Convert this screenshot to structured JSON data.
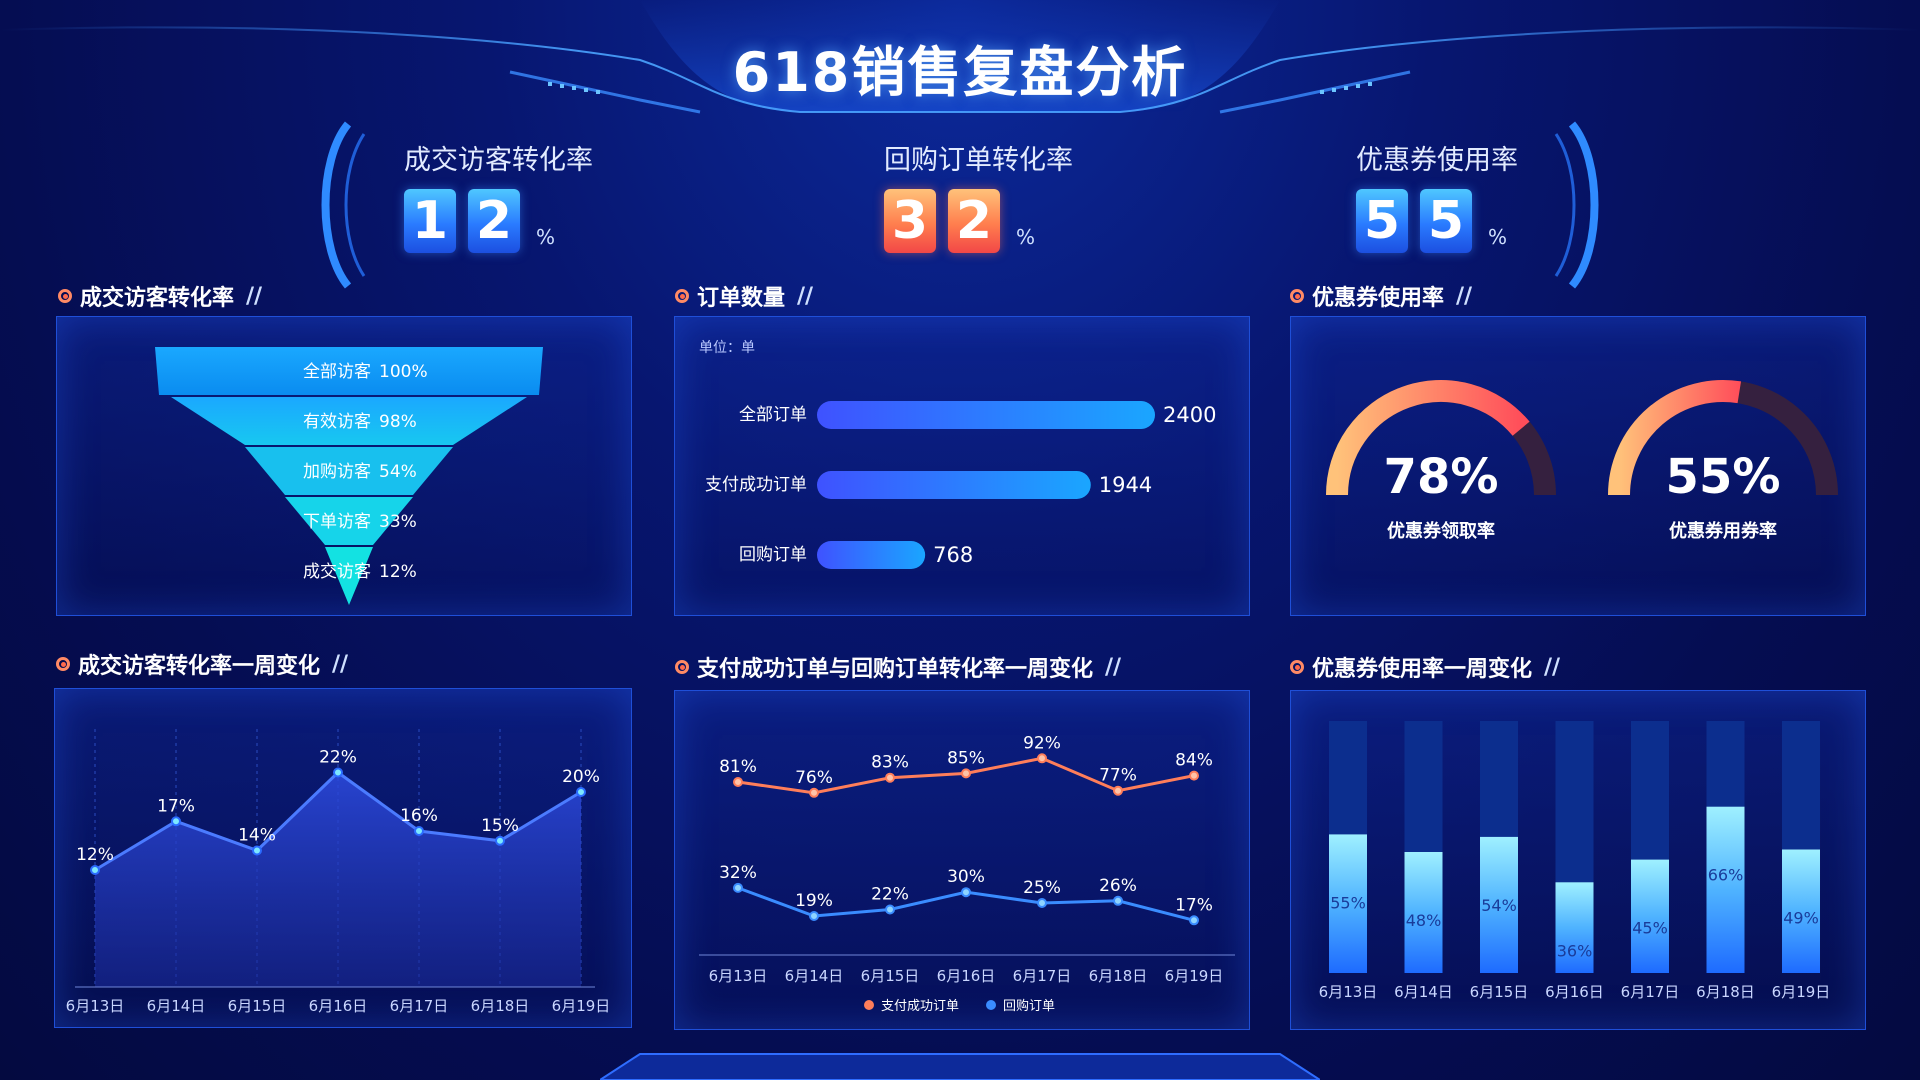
{
  "title": "618销售复盘分析",
  "kpis": [
    {
      "label": "成交访客转化率",
      "digits": [
        "1",
        "2"
      ],
      "unit": "%",
      "color": "blue"
    },
    {
      "label": "回购订单转化率",
      "digits": [
        "3",
        "2"
      ],
      "unit": "%",
      "color": "orange"
    },
    {
      "label": "优惠券使用率",
      "digits": [
        "5",
        "5"
      ],
      "unit": "%",
      "color": "blue"
    }
  ],
  "sections": {
    "funnel_title": "成交访客转化率",
    "orders_title": "订单数量",
    "coupon_title": "优惠券使用率",
    "area_title": "成交访客转化率一周变化",
    "lines_title": "支付成功订单与回购订单转化率一周变化",
    "coupon_week_title": "优惠券使用率一周变化",
    "slash": "//"
  },
  "chart_data": [
    {
      "type": "funnel",
      "categories": [
        "全部访客",
        "有效访客",
        "加购访客",
        "下单访客",
        "成交访客"
      ],
      "values": [
        100,
        98,
        54,
        33,
        12
      ],
      "value_labels": [
        "100%",
        "98%",
        "54%",
        "33%",
        "12%"
      ]
    },
    {
      "type": "bar",
      "unit_label": "单位：单",
      "categories": [
        "全部订单",
        "支付成功订单",
        "回购订单"
      ],
      "values": [
        2400,
        1944,
        768
      ]
    },
    {
      "type": "gauge",
      "items": [
        {
          "label": "优惠券领取率",
          "value": 78,
          "value_label": "78%"
        },
        {
          "label": "优惠券用券率",
          "value": 55,
          "value_label": "55%"
        }
      ]
    },
    {
      "type": "area",
      "x": [
        "6月13日",
        "6月14日",
        "6月15日",
        "6月16日",
        "6月17日",
        "6月18日",
        "6月19日"
      ],
      "values": [
        12,
        17,
        14,
        22,
        16,
        15,
        20
      ],
      "value_labels": [
        "12%",
        "17%",
        "14%",
        "22%",
        "16%",
        "15%",
        "20%"
      ]
    },
    {
      "type": "line",
      "x": [
        "6月13日",
        "6月14日",
        "6月15日",
        "6月16日",
        "6月17日",
        "6月18日",
        "6月19日"
      ],
      "series": [
        {
          "name": "支付成功订单",
          "values": [
            81,
            76,
            83,
            85,
            92,
            77,
            84
          ],
          "value_labels": [
            "81%",
            "76%",
            "83%",
            "85%",
            "92%",
            "77%",
            "84%"
          ],
          "color": "#ff7e5a"
        },
        {
          "name": "回购订单",
          "values": [
            32,
            19,
            22,
            30,
            25,
            26,
            17
          ],
          "value_labels": [
            "32%",
            "19%",
            "22%",
            "30%",
            "25%",
            "26%",
            "17%"
          ],
          "color": "#3a8cff"
        }
      ],
      "legend": "bottom-center"
    },
    {
      "type": "bar",
      "x": [
        "6月13日",
        "6月14日",
        "6月15日",
        "6月16日",
        "6月17日",
        "6月18日",
        "6月19日"
      ],
      "values": [
        55,
        48,
        54,
        36,
        45,
        66,
        49
      ],
      "value_labels": [
        "55%",
        "48%",
        "54%",
        "36%",
        "45%",
        "66%",
        "49%"
      ],
      "ylim": [
        0,
        100
      ]
    }
  ]
}
